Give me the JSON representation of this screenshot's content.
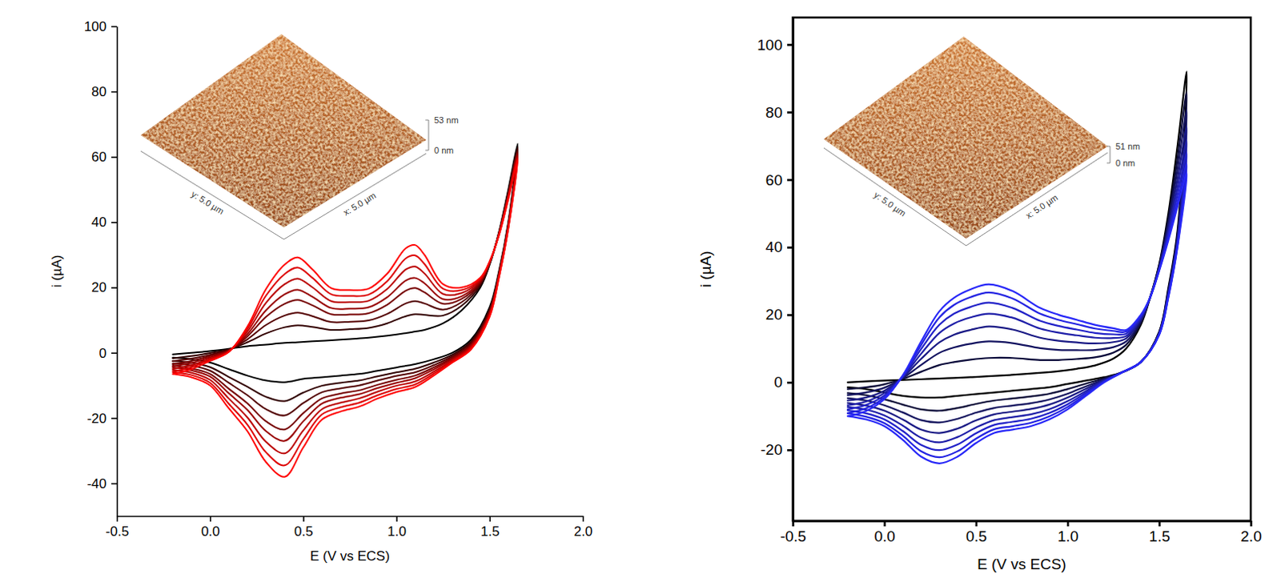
{
  "chart_data": [
    {
      "type": "line",
      "x_label": "E (V vs ECS)",
      "y_label": "i (µA)",
      "xlim": [
        -0.5,
        2.0
      ],
      "ylim": [
        -50,
        100
      ],
      "xticks": [
        -0.5,
        {
          "value": 0,
          "label": "0.0"
        },
        0.5,
        {
          "value": 1,
          "label": "1.0"
        },
        1.5,
        {
          "value": 2,
          "label": "2.0"
        }
      ],
      "yticks": [
        -40,
        -20,
        0,
        20,
        40,
        60,
        80,
        100
      ],
      "inset": {
        "z_max": "53 nm",
        "z_min": "0 nm",
        "x_axis": "x: 5.0 µm",
        "y_axis": "y: 5.0 µm"
      },
      "x": [
        -0.2,
        -0.1,
        0,
        0.1,
        0.2,
        0.3,
        0.4,
        0.47,
        0.55,
        0.65,
        0.75,
        0.85,
        0.95,
        1.05,
        1.1,
        1.15,
        1.25,
        1.35,
        1.45,
        1.5,
        1.55,
        1.6,
        1.65,
        1.6,
        1.55,
        1.5,
        1.4,
        1.3,
        1.2,
        1.1,
        1.0,
        0.9,
        0.8,
        0.7,
        0.6,
        0.5,
        0.4,
        0.3,
        0.2,
        0.1,
        0,
        -0.1,
        -0.2
      ],
      "series": [
        {
          "color": "#000000",
          "values": [
            -0.5,
            0,
            0.5,
            1.2,
            2,
            2.5,
            3,
            3.2,
            3.5,
            3.8,
            4.2,
            4.6,
            5.2,
            6,
            6.5,
            7,
            9,
            13,
            20,
            27,
            37,
            50,
            64,
            40,
            25,
            14,
            4,
            0,
            -2,
            -3.5,
            -4.5,
            -5.5,
            -6.5,
            -7,
            -7.5,
            -8,
            -9,
            -8.5,
            -7,
            -5,
            -3,
            -2,
            -1.5
          ]
        },
        {
          "color": "#330000",
          "values": [
            -1.7,
            -1,
            -0.1,
            1,
            3.2,
            5.9,
            7.8,
            8.4,
            7.9,
            7,
            7.2,
            7.6,
            9,
            11.2,
            11.8,
            11.6,
            11.4,
            14.4,
            20.6,
            27.2,
            36.8,
            49.4,
            63,
            39.6,
            24.6,
            13.4,
            3.4,
            -0.6,
            -3,
            -4.9,
            -6,
            -7.2,
            -8.5,
            -9.2,
            -10.1,
            -12.2,
            -14.8,
            -13.5,
            -10.4,
            -7.4,
            -4.4,
            -3.1,
            -2.5
          ]
        },
        {
          "color": "#550000",
          "values": [
            -2.6,
            -1.8,
            -0.6,
            0.9,
            4.1,
            8.5,
            11.4,
            12.3,
            11.2,
            9.4,
            9.5,
            9.9,
            11.9,
            15.1,
            15.8,
            15.1,
            13.2,
            15.5,
            21.1,
            27.4,
            36.7,
            49,
            62.3,
            39.3,
            24.3,
            13,
            3,
            -1.1,
            -3.8,
            -6,
            -7.1,
            -8.5,
            -10,
            -10.9,
            -12.1,
            -15.4,
            -19.2,
            -17.3,
            -13,
            -9.2,
            -5.5,
            -3.9,
            -3.3
          ]
        },
        {
          "color": "#770000",
          "values": [
            -3.5,
            -2.5,
            -1,
            0.7,
            5,
            11,
            15,
            16.2,
            14.5,
            11.8,
            11.7,
            12.1,
            14.7,
            19,
            19.8,
            18.5,
            15,
            16.5,
            21.5,
            27.5,
            36.5,
            48.5,
            61.5,
            39,
            24,
            12.5,
            2.5,
            -1.5,
            -4.5,
            -7,
            -8.3,
            -9.8,
            -11.5,
            -12.5,
            -14,
            -18.5,
            -23.5,
            -21,
            -15.5,
            -11,
            -6.5,
            -4.8,
            -4
          ]
        },
        {
          "color": "#990000",
          "values": [
            -4.2,
            -3.1,
            -1.4,
            0.6,
            5.7,
            13,
            17.9,
            19.3,
            17.1,
            13.7,
            13.5,
            13.9,
            17,
            22.1,
            22.9,
            21.3,
            16.4,
            17.3,
            21.9,
            27.6,
            36.4,
            48.1,
            60.9,
            38.8,
            23.8,
            12.1,
            2.1,
            -1.9,
            -5.1,
            -7.8,
            -9.2,
            -10.8,
            -12.7,
            -13.8,
            -15.6,
            -21,
            -27,
            -24,
            -17.5,
            -12.4,
            -7.3,
            -5.4,
            -4.6
          ]
        },
        {
          "color": "#bb0000",
          "values": [
            -5,
            -3.8,
            -1.8,
            0.5,
            6.5,
            15.3,
            21,
            22.7,
            20,
            15.8,
            15.5,
            15.9,
            19.5,
            25.5,
            26.4,
            24.3,
            18,
            18.3,
            22.3,
            27.8,
            36.3,
            47.8,
            60.3,
            38.5,
            23.5,
            11.8,
            1.8,
            -2.3,
            -5.8,
            -8.8,
            -10.1,
            -11.9,
            -14,
            -15.3,
            -17.3,
            -23.8,
            -30.8,
            -27.3,
            -19.8,
            -14,
            -8.3,
            -6.1,
            -5.3
          ]
        },
        {
          "color": "#dd0000",
          "values": [
            -5.8,
            -4.4,
            -2.1,
            0.3,
            7.3,
            17.5,
            24.1,
            26.1,
            22.9,
            17.9,
            17.4,
            17.8,
            21.9,
            28.9,
            29.8,
            27.2,
            19.6,
            19.2,
            22.6,
            27.9,
            36.1,
            47.4,
            59.6,
            38.2,
            23.2,
            11.4,
            1.4,
            -2.6,
            -6.4,
            -9.7,
            -11.1,
            -13,
            -15.3,
            -16.7,
            -18.9,
            -26.5,
            -34.5,
            -30.5,
            -22,
            -15.6,
            -9.2,
            -6.8,
            -5.9
          ]
        },
        {
          "color": "#ff0000",
          "values": [
            -6.5,
            -5,
            -2.5,
            0.2,
            8,
            19.5,
            27,
            29.2,
            25.5,
            19.8,
            19.2,
            19.6,
            24.2,
            32,
            33,
            30,
            21,
            20,
            23,
            28,
            36,
            47,
            59,
            38,
            23,
            11,
            1,
            -3,
            -7,
            -10.5,
            -12,
            -14,
            -16.5,
            -18,
            -20.5,
            -29,
            -38,
            -33.5,
            -24,
            -17,
            -10,
            -7.5,
            -6.5
          ]
        }
      ]
    },
    {
      "type": "line",
      "x_label": "E (V vs ECS)",
      "y_label": "i (µA)",
      "xlim": [
        -0.5,
        2.0
      ],
      "ylim": [
        -41,
        108
      ],
      "xticks": [
        -0.5,
        {
          "value": 0,
          "label": "0.0"
        },
        0.5,
        {
          "value": 1,
          "label": "1.0"
        },
        1.5,
        {
          "value": 2,
          "label": "2.0"
        }
      ],
      "yticks": [
        -20,
        0,
        20,
        40,
        60,
        80,
        100
      ],
      "inset": {
        "z_max": "51 nm",
        "z_min": "0 nm",
        "x_axis": "x: 5.0 µm",
        "y_axis": "y: 5.0 µm"
      },
      "x": [
        -0.2,
        -0.1,
        0,
        0.1,
        0.2,
        0.3,
        0.38,
        0.47,
        0.57,
        0.7,
        0.85,
        0.95,
        1.05,
        1.15,
        1.25,
        1.32,
        1.4,
        1.45,
        1.5,
        1.55,
        1.6,
        1.65,
        1.6,
        1.55,
        1.5,
        1.4,
        1.3,
        1.2,
        1.1,
        1.0,
        0.9,
        0.8,
        0.7,
        0.6,
        0.5,
        0.4,
        0.3,
        0.2,
        0.1,
        0,
        -0.1,
        -0.2
      ],
      "series": [
        {
          "color": "#000000",
          "values": [
            0,
            0.3,
            0.5,
            0.7,
            0.9,
            1.1,
            1.3,
            1.5,
            1.8,
            2.2,
            2.8,
            3.3,
            4,
            5,
            7,
            10,
            17,
            25,
            35,
            50,
            70,
            92,
            45,
            28,
            15,
            6,
            3,
            1.5,
            0.5,
            -0.5,
            -1.5,
            -2,
            -2.5,
            -3,
            -3.5,
            -4,
            -4.5,
            -4.5,
            -4,
            -3,
            -2,
            -1.5
          ]
        },
        {
          "color": "#0b0b3a",
          "values": [
            -2,
            -1.5,
            -0.6,
            1,
            3.1,
            5.1,
            6,
            6.7,
            7.2,
            7.2,
            6.6,
            6.6,
            6.9,
            7.4,
            8.8,
            11.1,
            17.6,
            25,
            34.6,
            48.4,
            66.4,
            86,
            44,
            27.4,
            14.8,
            6,
            3,
            1.2,
            -0.4,
            -2,
            -3.4,
            -4.2,
            -4.8,
            -5.4,
            -6.4,
            -7.6,
            -8.4,
            -8,
            -6.6,
            -5,
            -3.8,
            -3.2
          ]
        },
        {
          "color": "#141460",
          "values": [
            -3.8,
            -3,
            -1.6,
            1.2,
            5.1,
            8.7,
            10.3,
            11.4,
            12.1,
            11.6,
            10.1,
            9.6,
            9.5,
            9.6,
            10.4,
            12.1,
            18.1,
            25,
            34.2,
            47,
            63.2,
            80.6,
            43.1,
            26.9,
            14.6,
            6,
            3,
            0.9,
            -1.2,
            -3.4,
            -5.1,
            -6.2,
            -6.9,
            -7.6,
            -9,
            -10.8,
            -11.9,
            -11.2,
            -8.9,
            -6.8,
            -5.4,
            -4.7
          ]
        },
        {
          "color": "#1a1a85",
          "values": [
            -5.4,
            -4.5,
            -2.5,
            1.4,
            6.9,
            11.8,
            14.1,
            15.5,
            16.5,
            15.6,
            13.2,
            12.3,
            11.8,
            11.5,
            11.9,
            13,
            18.6,
            25,
            33.9,
            45.7,
            60.3,
            75.8,
            42.3,
            26.4,
            14.5,
            6,
            3,
            0.7,
            -1.9,
            -4.5,
            -6.6,
            -7.9,
            -8.7,
            -9.5,
            -11.3,
            -13.7,
            -15,
            -14,
            -11,
            -8.4,
            -6.9,
            -6.1
          ]
        },
        {
          "color": "#1f1fa8",
          "values": [
            -6.8,
            -5.7,
            -3.2,
            1.6,
            8.4,
            14.6,
            17.4,
            19.2,
            20.3,
            19.1,
            15.9,
            14.7,
            13.9,
            13.2,
            13.1,
            13.7,
            19,
            25,
            33.6,
            44.6,
            57.8,
            71.6,
            41.6,
            26,
            14.3,
            6,
            3,
            0.5,
            -2.6,
            -5.6,
            -8,
            -9.5,
            -10.3,
            -11.2,
            -13.4,
            -16.2,
            -17.8,
            -16.4,
            -12.8,
            -9.8,
            -8.1,
            -7.3
          ]
        },
        {
          "color": "#2222c8",
          "values": [
            -8,
            -6.7,
            -3.9,
            1.7,
            9.8,
            17,
            20.3,
            22.3,
            23.6,
            22,
            18.2,
            16.7,
            15.6,
            14.6,
            14.2,
            14.4,
            19.4,
            25,
            33.4,
            43.6,
            55.6,
            68,
            41,
            25.6,
            14.2,
            6,
            3,
            0.3,
            -3.1,
            -6.5,
            -9.1,
            -10.8,
            -11.7,
            -12.6,
            -15.1,
            -18.4,
            -20.1,
            -18.5,
            -14.4,
            -11,
            -9.2,
            -8.3
          ]
        },
        {
          "color": "#2424e2",
          "values": [
            -9.1,
            -7.7,
            -4.5,
            1.9,
            11,
            19.2,
            22.9,
            25.2,
            26.6,
            24.8,
            20.3,
            18.5,
            17.2,
            15.9,
            15.2,
            15,
            19.7,
            25,
            33.2,
            42.7,
            53.6,
            64.7,
            40.4,
            25.3,
            14.1,
            6,
            3,
            0.1,
            -3.6,
            -7.3,
            -10.1,
            -12,
            -13,
            -13.9,
            -16.7,
            -20.4,
            -22.2,
            -20.4,
            -15.8,
            -12.1,
            -10.2,
            -9.2
          ]
        },
        {
          "color": "#2828f8",
          "values": [
            -10,
            -8.5,
            -5,
            2,
            12,
            21,
            25,
            27.5,
            29,
            27,
            22,
            20,
            18.5,
            17,
            16,
            15.5,
            20,
            25,
            33,
            42,
            52,
            62,
            40,
            25,
            14,
            6,
            3,
            0,
            -4,
            -8,
            -11,
            -13,
            -14,
            -15,
            -18,
            -22,
            -24,
            -22,
            -17,
            -13,
            -11,
            -10
          ]
        }
      ]
    }
  ]
}
